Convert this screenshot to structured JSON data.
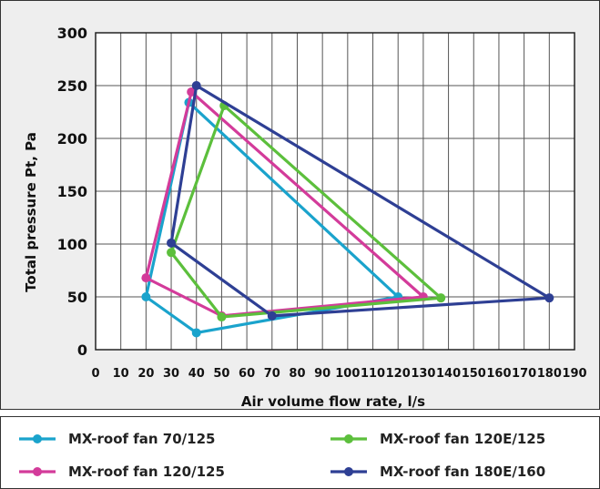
{
  "chart_data": {
    "type": "line",
    "xlabel": "Air volume flow rate, l/s",
    "ylabel": "Total pressure Pt, Pa",
    "xlim": [
      0,
      190
    ],
    "ylim": [
      0,
      300
    ],
    "xticks": [
      0,
      10,
      20,
      30,
      40,
      50,
      60,
      70,
      80,
      90,
      100,
      110,
      120,
      130,
      140,
      150,
      160,
      170,
      180,
      190
    ],
    "yticks": [
      0,
      50,
      100,
      150,
      200,
      250,
      300
    ],
    "grid": true,
    "legend_position": "bottom",
    "series": [
      {
        "name": "MX-roof fan 70/125",
        "color": "#1aa3cc",
        "points": [
          [
            20,
            50
          ],
          [
            40,
            16
          ],
          [
            120,
            50
          ],
          [
            37,
            234
          ],
          [
            20,
            50
          ]
        ]
      },
      {
        "name": "MX-roof fan 120/125",
        "color": "#d33b9a",
        "points": [
          [
            20,
            68
          ],
          [
            50,
            32
          ],
          [
            130,
            50
          ],
          [
            38,
            244
          ],
          [
            20,
            68
          ]
        ]
      },
      {
        "name": "MX-roof fan 120E/125",
        "color": "#5cbf3c",
        "points": [
          [
            30,
            92
          ],
          [
            50,
            31
          ],
          [
            137,
            49
          ],
          [
            51,
            231
          ],
          [
            30,
            92
          ]
        ]
      },
      {
        "name": "MX-roof fan 180E/160",
        "color": "#2e3f94",
        "points": [
          [
            30,
            101
          ],
          [
            70,
            32
          ],
          [
            180,
            49
          ],
          [
            40,
            250
          ],
          [
            30,
            101
          ]
        ]
      }
    ]
  }
}
